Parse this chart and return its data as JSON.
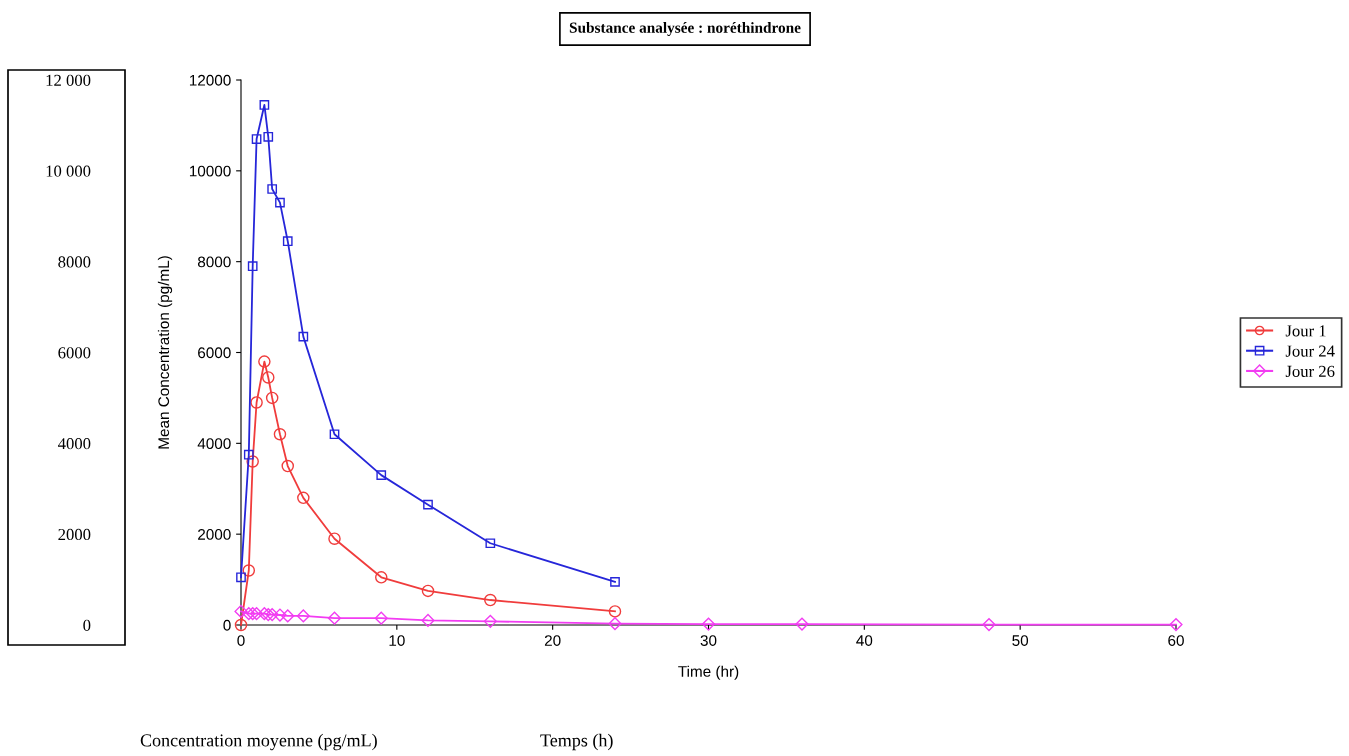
{
  "chart_data": {
    "type": "line",
    "title": "Substance analysée : noréthindrone",
    "xlabel": "Time (hr)",
    "ylabel": "Mean Concentration (pg/mL)",
    "xlim": [
      0,
      60
    ],
    "xticks": [
      0,
      10,
      20,
      30,
      40,
      50,
      60
    ],
    "ylim": [
      0,
      12000
    ],
    "yticks": [
      0,
      2000,
      4000,
      6000,
      8000,
      10000,
      12000
    ],
    "y2lim": [
      0,
      12000
    ],
    "y2ticks": [
      {
        "value": 0,
        "label": "0"
      },
      {
        "value": 2000,
        "label": "2000"
      },
      {
        "value": 4000,
        "label": "4000"
      },
      {
        "value": 6000,
        "label": "6000"
      },
      {
        "value": 8000,
        "label": "8000"
      },
      {
        "value": 10000,
        "label": "10 000"
      },
      {
        "value": 12000,
        "label": "12 000"
      }
    ],
    "annotations": [
      "Concentration moyenne (pg/mL)",
      "Temps (h)"
    ],
    "legend": "right",
    "grid": false,
    "line_style": "solid",
    "series": [
      {
        "name": "Jour 1",
        "color": "#f03c3c",
        "marker": "circle",
        "x": [
          0,
          0.5,
          0.75,
          1,
          1.5,
          1.75,
          2,
          2.5,
          3,
          4,
          6,
          9,
          12,
          16,
          24
        ],
        "values": [
          0,
          1200,
          3600,
          4900,
          5800,
          5450,
          5000,
          4200,
          3500,
          2800,
          1900,
          1050,
          750,
          550,
          300
        ]
      },
      {
        "name": "Jour 24",
        "color": "#2626d9",
        "marker": "square",
        "x": [
          0,
          0.5,
          0.75,
          1,
          1.5,
          1.75,
          2,
          2.5,
          3,
          4,
          6,
          9,
          12,
          16,
          24
        ],
        "values": [
          1050,
          3750,
          7900,
          10700,
          11450,
          10750,
          9600,
          9300,
          8450,
          6350,
          4200,
          3300,
          2650,
          1800,
          950
        ]
      },
      {
        "name": "Jour 26",
        "color": "#f23cf2",
        "marker": "diamond",
        "x": [
          0,
          0.5,
          0.75,
          1,
          1.5,
          1.75,
          2,
          2.5,
          3,
          4,
          6,
          9,
          12,
          16,
          24,
          30,
          36,
          48,
          60
        ],
        "values": [
          300,
          250,
          250,
          250,
          250,
          230,
          230,
          220,
          200,
          200,
          150,
          150,
          100,
          80,
          30,
          20,
          20,
          10,
          10
        ]
      }
    ]
  }
}
